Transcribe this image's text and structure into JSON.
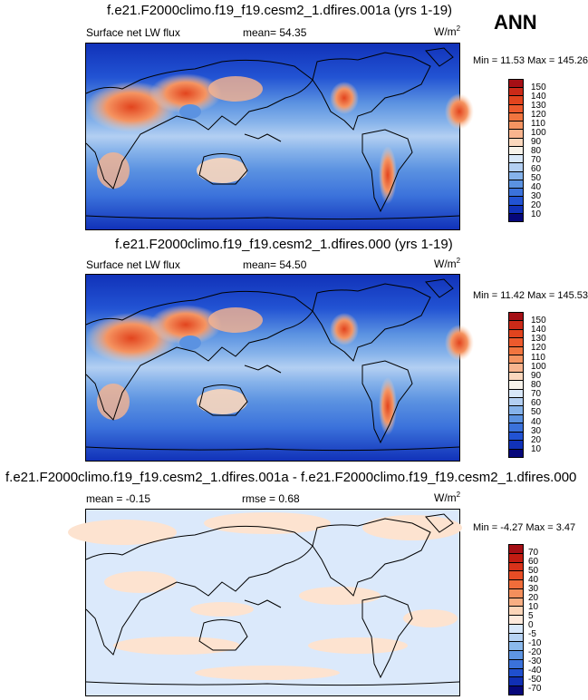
{
  "season": "ANN",
  "panels": [
    {
      "title": "f.e21.F2000climo.f19_f19.cesm2_1.dfires.001a (yrs 1-19)",
      "variable": "Surface net LW flux",
      "stat_label": "mean=",
      "stat_value": "54.35",
      "units_base": "W/m",
      "units_exp": "2",
      "min_label": "Min =",
      "min_value": "11.53",
      "max_label": "Max =",
      "max_value": "145.26",
      "colorbar_levels": [
        "150",
        "140",
        "130",
        "120",
        "110",
        "100",
        "90",
        "80",
        "70",
        "60",
        "50",
        "40",
        "30",
        "20",
        "10"
      ],
      "colorbar_colors": [
        "#a50f15",
        "#cb2a18",
        "#e2441e",
        "#ed5a2d",
        "#f1753f",
        "#f59461",
        "#f8b48e",
        "#fbd7bd",
        "#f7f2ea",
        "#d8e7f8",
        "#b3cff2",
        "#85b2ea",
        "#5b92e1",
        "#3b72db",
        "#2253d3",
        "#1132b9",
        "#06077a"
      ]
    },
    {
      "title": "f.e21.F2000climo.f19_f19.cesm2_1.dfires.000 (yrs 1-19)",
      "variable": "Surface net LW flux",
      "stat_label": "mean=",
      "stat_value": "54.50",
      "units_base": "W/m",
      "units_exp": "2",
      "min_label": "Min =",
      "min_value": "11.42",
      "max_label": "Max =",
      "max_value": "145.53",
      "colorbar_levels": [
        "150",
        "140",
        "130",
        "120",
        "110",
        "100",
        "90",
        "80",
        "70",
        "60",
        "50",
        "40",
        "30",
        "20",
        "10"
      ],
      "colorbar_colors": [
        "#a50f15",
        "#cb2a18",
        "#e2441e",
        "#ed5a2d",
        "#f1753f",
        "#f59461",
        "#f8b48e",
        "#fbd7bd",
        "#f7f2ea",
        "#d8e7f8",
        "#b3cff2",
        "#85b2ea",
        "#5b92e1",
        "#3b72db",
        "#2253d3",
        "#1132b9",
        "#06077a"
      ]
    },
    {
      "title": "f.e21.F2000climo.f19_f19.cesm2_1.dfires.001a - f.e21.F2000climo.f19_f19.cesm2_1.dfires.000",
      "stat_label": "mean =",
      "stat_value": "-0.15",
      "rmse_label": "rmse =",
      "rmse_value": "0.68",
      "units_base": "W/m",
      "units_exp": "2",
      "min_label": "Min =",
      "min_value": "-4.27",
      "max_label": "Max =",
      "max_value": "3.47",
      "colorbar_levels": [
        "70",
        "60",
        "50",
        "40",
        "30",
        "20",
        "10",
        "5",
        "0",
        "-5",
        "-10",
        "-20",
        "-30",
        "-40",
        "-50",
        "-70"
      ],
      "colorbar_colors": [
        "#a50f15",
        "#c21c12",
        "#d8321a",
        "#e84d25",
        "#f06d3a",
        "#f48f5c",
        "#f7ae83",
        "#fbd5b9",
        "#fde9dc",
        "#d8e8fb",
        "#b7d3f4",
        "#8bb9ec",
        "#5e95e2",
        "#3b72db",
        "#1f4fce",
        "#102fb4",
        "#06077a"
      ]
    }
  ],
  "colors": {
    "land_outline": "#000000",
    "diff_pos": "#fde3d0",
    "diff_neg": "#dbe9fb"
  }
}
